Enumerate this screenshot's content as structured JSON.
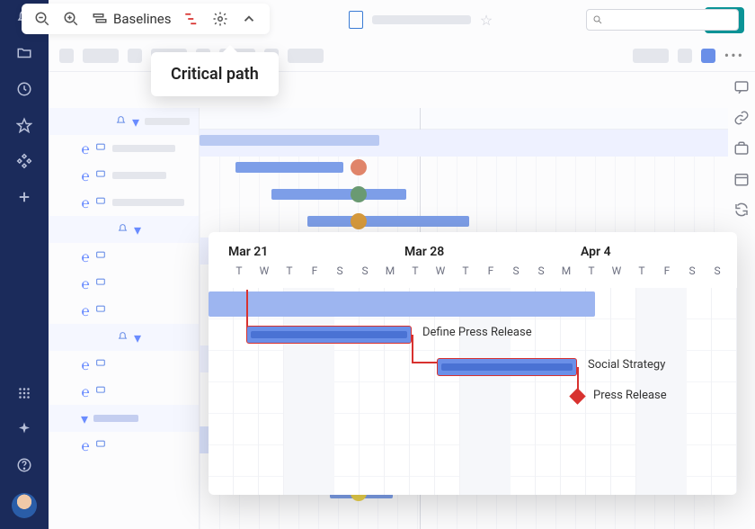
{
  "toolbar": {
    "baselines_label": "Baselines",
    "tooltip": "Critical path"
  },
  "nav": {
    "items": [
      "bell",
      "folder",
      "clock",
      "star",
      "diamond",
      "plus"
    ],
    "bottom": [
      "grid",
      "sparkle",
      "help"
    ]
  },
  "detail": {
    "weeks": [
      {
        "label": "Mar 21",
        "days": [
          "T",
          "W",
          "T",
          "F",
          "S",
          "S",
          "M"
        ]
      },
      {
        "label": "Mar 28",
        "days": [
          "T",
          "W",
          "T",
          "F",
          "S",
          "S",
          "M"
        ]
      },
      {
        "label": "Apr 4",
        "days": [
          "T",
          "W",
          "T",
          "F",
          "S",
          "S",
          "M"
        ]
      }
    ],
    "tasks": {
      "t1": {
        "label": "Define Press Release"
      },
      "t2": {
        "label": "Social Strategy"
      },
      "t3": {
        "label": "Press Release"
      }
    },
    "colors": {
      "bar_wide": "#9db5f0",
      "bar_task": "#6a8fe8",
      "bar_inner": "#4a72d4",
      "critical": "#d8322f",
      "weekend": "#f6f7fa"
    }
  }
}
